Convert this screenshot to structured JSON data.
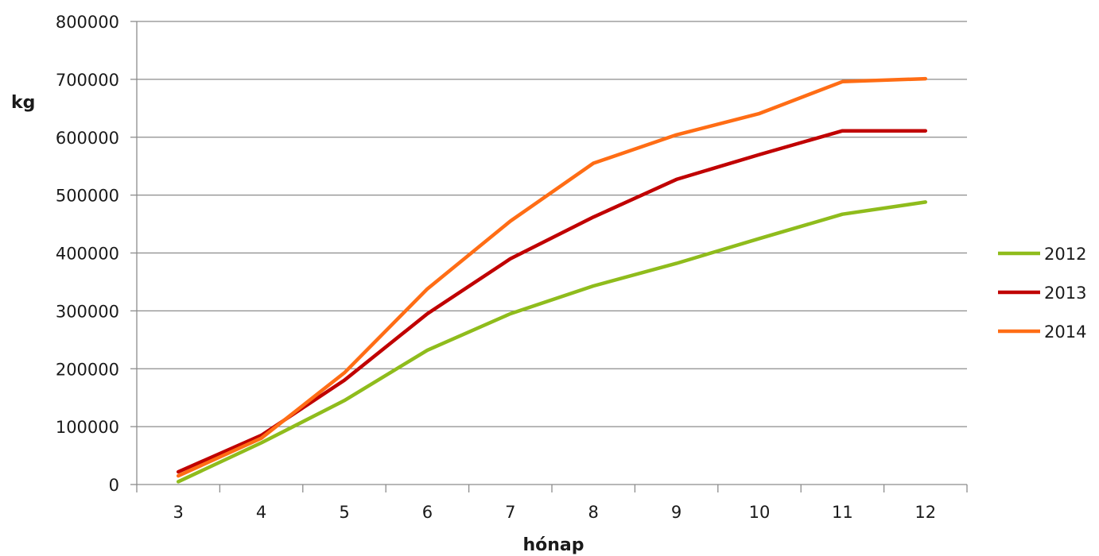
{
  "chart_data": {
    "type": "line",
    "title": "",
    "xlabel": "hónap",
    "ylabel": "kg",
    "categories": [
      "3",
      "4",
      "5",
      "6",
      "7",
      "8",
      "9",
      "10",
      "11",
      "12"
    ],
    "ylim": [
      0,
      800000
    ],
    "yticks": [
      "0",
      "100000",
      "200000",
      "300000",
      "400000",
      "500000",
      "600000",
      "700000",
      "800000"
    ],
    "grid": true,
    "legend_position": "right",
    "series": [
      {
        "name": "2012",
        "color": "#8fbc1c",
        "values": [
          5000,
          72000,
          145000,
          232000,
          295000,
          343000,
          382000,
          425000,
          467000,
          488000
        ]
      },
      {
        "name": "2013",
        "color": "#c00000",
        "values": [
          22000,
          85000,
          180000,
          295000,
          390000,
          462000,
          527000,
          570000,
          611000,
          611000
        ]
      },
      {
        "name": "2014",
        "color": "#ff6d15",
        "values": [
          15000,
          80000,
          193000,
          338000,
          455000,
          555000,
          604000,
          641000,
          696000,
          701000
        ]
      }
    ]
  }
}
